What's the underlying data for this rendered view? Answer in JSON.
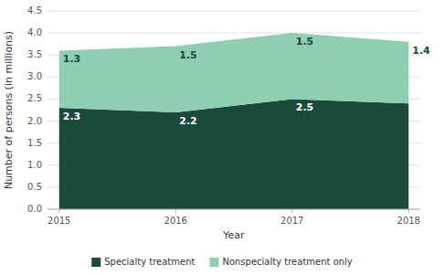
{
  "chart_data": {
    "type": "area",
    "stacked": true,
    "x": [
      2015,
      2016,
      2017,
      2018
    ],
    "series": [
      {
        "name": "Specialty treatment",
        "color": "#1a4a3a",
        "values": [
          2.3,
          2.2,
          2.5,
          2.4
        ]
      },
      {
        "name": "Nonspecialty treatment only",
        "color": "#8dcfb0",
        "values": [
          1.3,
          1.5,
          1.5,
          1.4
        ]
      }
    ],
    "xlabel": "Year",
    "ylabel": "Number of persons (in millions)",
    "xlim": [
      2014.9,
      2018.1
    ],
    "xticks": [
      2015,
      2016,
      2017,
      2018
    ],
    "ylim": [
      0.0,
      4.5
    ],
    "yticks": [
      {
        "value": 0.0,
        "label": "0.0"
      },
      0.5,
      {
        "value": 1.0,
        "label": "1.0"
      },
      1.5,
      {
        "value": 2.0,
        "label": "2.0"
      },
      2.5,
      {
        "value": 3.0,
        "label": "3.0"
      },
      3.5,
      {
        "value": 4.0,
        "label": "4.0"
      },
      4.5
    ],
    "grid": true,
    "data_labels": true,
    "legend": "bottom"
  }
}
